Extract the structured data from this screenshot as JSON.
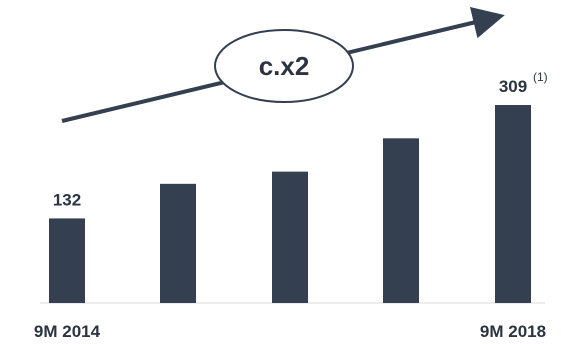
{
  "chart_data": {
    "type": "bar",
    "categories": [
      "9M 2014",
      "",
      "",
      "",
      "9M 2018"
    ],
    "values": [
      132,
      186,
      205,
      257,
      309
    ],
    "data_labels": [
      "132",
      "",
      "",
      "",
      "309"
    ],
    "footnote_marker": "(1)",
    "growth_badge": "c.x2",
    "colors": {
      "bar": "#343f4f",
      "text": "#2c3441",
      "axis": "#d9d9d9"
    },
    "grid": false,
    "legend": "none"
  }
}
